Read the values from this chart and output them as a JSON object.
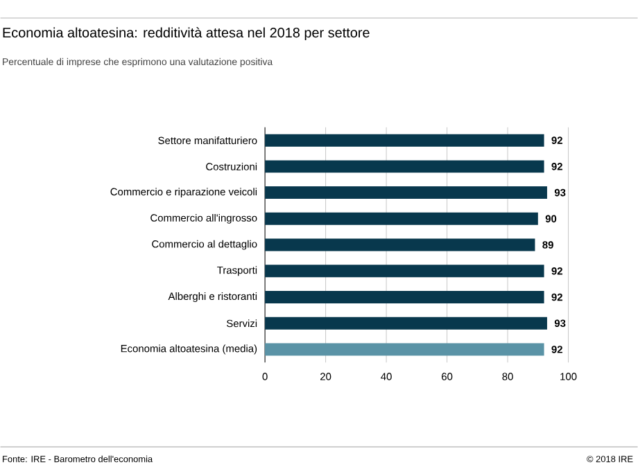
{
  "chart_data": {
    "type": "bar",
    "orientation": "horizontal",
    "title": "Economia altoatesina: redditività attesa nel 2018 per settore",
    "subtitle": "Percentuale di imprese che esprimono una valutazione positiva",
    "categories": [
      "Settore manifatturiero",
      "Costruzioni",
      "Commercio e riparazione veicoli",
      "Commercio all'ingrosso",
      "Commercio al dettaglio",
      "Trasporti",
      "Alberghi e ristoranti",
      "Servizi",
      "Economia altoatesina (media)"
    ],
    "values": [
      92,
      92,
      93,
      90,
      89,
      92,
      92,
      93,
      92
    ],
    "colors": [
      "#08384d",
      "#08384d",
      "#08384d",
      "#08384d",
      "#08384d",
      "#08384d",
      "#08384d",
      "#08384d",
      "#5a93a6"
    ],
    "data_labels": true,
    "xlim": [
      0,
      100
    ],
    "xticks": [
      0,
      20,
      40,
      60,
      80,
      100
    ],
    "grid": "x",
    "annotations": [
      "Fonte: IRE - Barometro dell'economia",
      "© 2018 IRE"
    ]
  }
}
